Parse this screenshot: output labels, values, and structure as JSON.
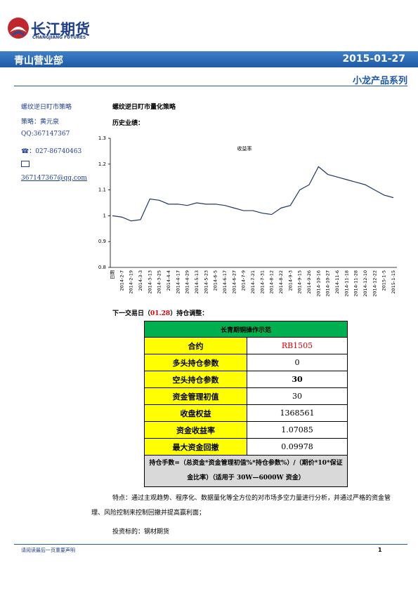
{
  "header": {
    "logo_cn": "长江期货",
    "logo_en": "CHANGJIANG FUTURES",
    "branch": "青山营业部",
    "date": "2015-01-27",
    "series": "小龙产品系列"
  },
  "sidebar": {
    "strategy": "螺纹逆日盯市策略",
    "author": "策略：黄元泉",
    "qq": "QQ:367147367",
    "phone": "☎：027-86740463",
    "email": "367147367@qq.com"
  },
  "main": {
    "title": "螺纹逆日盯市量化策略",
    "history_label": "历史业绩：",
    "adjust_prefix": "下一交易日（",
    "adjust_date": "01.28",
    "adjust_suffix": "）持仓调整：",
    "features": "特点：通过主观趋势、程序化、数据量化等全方位的对市场多空力量进行分析，并通过严格的资金管理、风险控制来控制回撤并提高赢利面；",
    "target": "投资标的：钢材期货"
  },
  "chart_data": {
    "type": "line",
    "title": "收益率",
    "categories": [
      "日期",
      "2014-2-7",
      "2014-2-19",
      "2014-3-3",
      "2014-3-13",
      "2014-3-25",
      "2014-4-4",
      "2014-4-17",
      "2014-4-29",
      "2014-5-13",
      "2014-5-23",
      "2014-6-5",
      "2014-6-17",
      "2014-6-27",
      "2014-7-9",
      "2014-7-21",
      "2014-7-31",
      "2014-8-12",
      "2014-8-22",
      "2014-9-3",
      "2014-9-15",
      "2014-9-26",
      "2014-10-16",
      "2014-10-27",
      "2014-11-6",
      "2014-11-18",
      "2014-11-28",
      "2014-12-10",
      "2014-12-22",
      "2015-1-5",
      "2015-1-15"
    ],
    "series": [
      {
        "name": "收益率",
        "color": "#1f3864",
        "values": [
          1.0,
          0.995,
          0.98,
          0.985,
          1.065,
          1.06,
          1.045,
          1.045,
          1.04,
          1.05,
          1.045,
          1.045,
          1.04,
          1.03,
          1.02,
          1.02,
          1.01,
          1.005,
          1.03,
          1.04,
          1.1,
          1.12,
          1.19,
          1.16,
          1.15,
          1.14,
          1.13,
          1.12,
          1.1,
          1.08,
          1.07
        ]
      }
    ],
    "ylim": [
      0.8,
      1.3
    ],
    "yticks": [
      0.8,
      0.9,
      1,
      1.1,
      1.2,
      1.3
    ]
  },
  "table": {
    "title": "长青期铜操作示范",
    "rows": [
      [
        "合约",
        "RB1505"
      ],
      [
        "多头持仓参数",
        "0"
      ],
      [
        "空头持仓参数",
        "30"
      ],
      [
        "资金管理初值",
        "30"
      ],
      [
        "收盘权益",
        "1368561"
      ],
      [
        "资金收益率",
        "1.07085"
      ],
      [
        "最大资金回撤",
        "0.09978"
      ]
    ],
    "formula": "持仓手数=（总资金*资金管理初值%*持仓参数%）/（期价*10*保证金比率）（适用于 30W—6000W 资金）"
  },
  "footer": {
    "note": "请阅读最后一页重要声明",
    "page": "1"
  }
}
